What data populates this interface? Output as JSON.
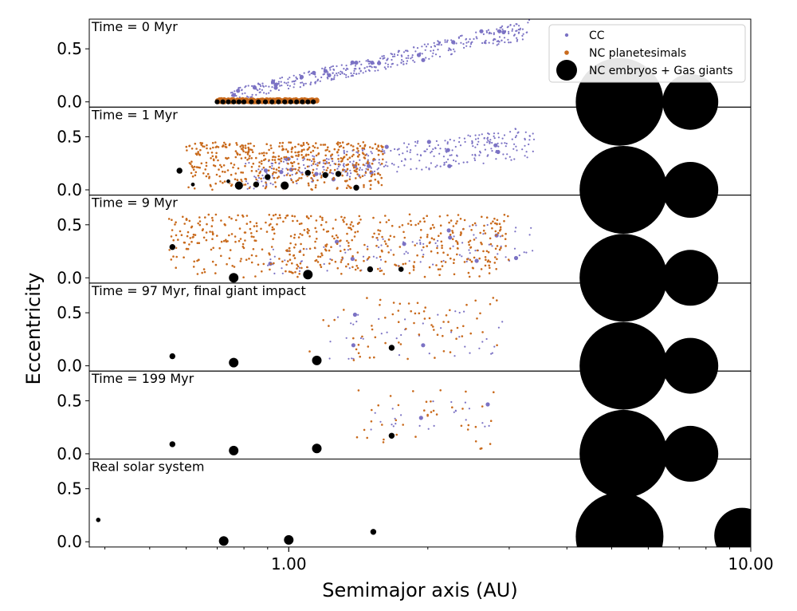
{
  "chart_data": {
    "type": "scatter",
    "xlabel": "Semimajor axis (AU)",
    "ylabel": "Eccentricity",
    "xscale": "log",
    "xlim": [
      0.37,
      10.0
    ],
    "ylim": [
      -0.05,
      0.78
    ],
    "x_tick_labels": [
      {
        "value": 1.0,
        "label": "1.00"
      },
      {
        "value": 10.0,
        "label": "10.00"
      }
    ],
    "y_tick_labels": [
      {
        "value": 0.0,
        "label": "0.0"
      },
      {
        "value": 0.5,
        "label": "0.5"
      }
    ],
    "legend": {
      "position": "top-right",
      "entries": [
        {
          "label": "CC",
          "color": "#7b72c4"
        },
        {
          "label": "NC planetesimals",
          "color": "#c96a1c"
        },
        {
          "label": "NC embryos + Gas giants",
          "color": "#000000"
        }
      ]
    },
    "colors": {
      "cc": "#7b72c4",
      "nc": "#c96a1c",
      "body": "#000000"
    },
    "panels": [
      {
        "label": "Time = 0 Myr",
        "cc_region": {
          "x": [
            0.75,
            3.35
          ],
          "e_low": [
            0.0,
            0.6
          ],
          "e_high": [
            0.12,
            0.78
          ],
          "count": 420
        },
        "nc_region": {
          "x": [
            0.7,
            1.15
          ],
          "e_max": 0.02,
          "count": 160
        },
        "bodies": [
          {
            "a": 0.7,
            "e": 0.0,
            "size": 0.35
          },
          {
            "a": 0.72,
            "e": 0.0,
            "size": 0.35
          },
          {
            "a": 0.74,
            "e": 0.0,
            "size": 0.35
          },
          {
            "a": 0.76,
            "e": 0.0,
            "size": 0.35
          },
          {
            "a": 0.78,
            "e": 0.0,
            "size": 0.35
          },
          {
            "a": 0.8,
            "e": 0.0,
            "size": 0.35
          },
          {
            "a": 0.83,
            "e": 0.0,
            "size": 0.35
          },
          {
            "a": 0.86,
            "e": 0.0,
            "size": 0.35
          },
          {
            "a": 0.89,
            "e": 0.0,
            "size": 0.35
          },
          {
            "a": 0.92,
            "e": 0.0,
            "size": 0.35
          },
          {
            "a": 0.95,
            "e": 0.0,
            "size": 0.35
          },
          {
            "a": 0.98,
            "e": 0.0,
            "size": 0.35
          },
          {
            "a": 1.01,
            "e": 0.0,
            "size": 0.35
          },
          {
            "a": 1.04,
            "e": 0.0,
            "size": 0.35
          },
          {
            "a": 1.07,
            "e": 0.0,
            "size": 0.35
          },
          {
            "a": 1.1,
            "e": 0.0,
            "size": 0.35
          },
          {
            "a": 1.13,
            "e": 0.0,
            "size": 0.35
          }
        ],
        "giants": [
          {
            "a": 5.2,
            "e": 0.0,
            "size": 55
          },
          {
            "a": 7.4,
            "e": 0.0,
            "size": 35
          }
        ]
      },
      {
        "label": "Time = 1 Myr",
        "cc_region": {
          "x": [
            0.8,
            3.4
          ],
          "e_low": [
            0.0,
            0.3
          ],
          "e_high": [
            0.25,
            0.6
          ],
          "count": 380
        },
        "nc_region": {
          "x": [
            0.6,
            1.6
          ],
          "e_max": 0.45,
          "count": 480
        },
        "bodies": [
          {
            "a": 0.58,
            "e": 0.18,
            "size": 0.45
          },
          {
            "a": 0.62,
            "e": 0.05,
            "size": 0.3
          },
          {
            "a": 0.74,
            "e": 0.08,
            "size": 0.3
          },
          {
            "a": 0.78,
            "e": 0.04,
            "size": 0.6
          },
          {
            "a": 0.85,
            "e": 0.05,
            "size": 0.45
          },
          {
            "a": 0.9,
            "e": 0.12,
            "size": 0.45
          },
          {
            "a": 0.98,
            "e": 0.04,
            "size": 0.6
          },
          {
            "a": 1.1,
            "e": 0.16,
            "size": 0.45
          },
          {
            "a": 1.2,
            "e": 0.14,
            "size": 0.45
          },
          {
            "a": 1.28,
            "e": 0.15,
            "size": 0.45
          },
          {
            "a": 1.4,
            "e": 0.02,
            "size": 0.45
          }
        ],
        "giants": [
          {
            "a": 5.3,
            "e": 0.0,
            "size": 55
          },
          {
            "a": 7.4,
            "e": 0.0,
            "size": 35
          }
        ]
      },
      {
        "label": "Time = 9 Myr",
        "cc_region": {
          "x": [
            0.9,
            3.4
          ],
          "e_low": [
            0.0,
            0.15
          ],
          "e_high": [
            0.3,
            0.55
          ],
          "count": 110
        },
        "nc_region": {
          "x": [
            0.55,
            3.0
          ],
          "e_max": 0.6,
          "count": 520
        },
        "bodies": [
          {
            "a": 0.56,
            "e": 0.29,
            "size": 0.45
          },
          {
            "a": 0.76,
            "e": 0.0,
            "size": 0.7
          },
          {
            "a": 1.1,
            "e": 0.03,
            "size": 0.7
          },
          {
            "a": 1.5,
            "e": 0.08,
            "size": 0.45
          },
          {
            "a": 1.75,
            "e": 0.08,
            "size": 0.4
          }
        ],
        "giants": [
          {
            "a": 5.3,
            "e": 0.0,
            "size": 55
          },
          {
            "a": 7.4,
            "e": 0.0,
            "size": 35
          }
        ]
      },
      {
        "label": "Time = 97 Myr, final giant impact",
        "cc_region": {
          "x": [
            1.2,
            3.0
          ],
          "e_low": [
            0.05,
            0.1
          ],
          "e_high": [
            0.5,
            0.55
          ],
          "count": 45
        },
        "nc_region": {
          "x": [
            1.1,
            2.9
          ],
          "e_max": 0.65,
          "count": 70
        },
        "bodies": [
          {
            "a": 0.56,
            "e": 0.09,
            "size": 0.45
          },
          {
            "a": 0.76,
            "e": 0.03,
            "size": 0.7
          },
          {
            "a": 1.15,
            "e": 0.05,
            "size": 0.7
          },
          {
            "a": 1.67,
            "e": 0.17,
            "size": 0.45
          }
        ],
        "giants": [
          {
            "a": 5.3,
            "e": 0.0,
            "size": 55
          },
          {
            "a": 7.4,
            "e": 0.0,
            "size": 35
          }
        ]
      },
      {
        "label": "Time = 199 Myr",
        "cc_region": {
          "x": [
            1.5,
            2.8
          ],
          "e_low": [
            0.2,
            0.2
          ],
          "e_high": [
            0.5,
            0.5
          ],
          "count": 25
        },
        "nc_region": {
          "x": [
            1.4,
            2.8
          ],
          "e_max": 0.6,
          "count": 40
        },
        "bodies": [
          {
            "a": 0.56,
            "e": 0.09,
            "size": 0.45
          },
          {
            "a": 0.76,
            "e": 0.03,
            "size": 0.7
          },
          {
            "a": 1.15,
            "e": 0.05,
            "size": 0.7
          },
          {
            "a": 1.67,
            "e": 0.17,
            "size": 0.45
          }
        ],
        "giants": [
          {
            "a": 5.3,
            "e": 0.0,
            "size": 55
          },
          {
            "a": 7.4,
            "e": 0.0,
            "size": 35
          }
        ]
      },
      {
        "label": "Real solar system",
        "cc_region": null,
        "nc_region": null,
        "bodies": [
          {
            "a": 0.387,
            "e": 0.206,
            "size": 0.35
          },
          {
            "a": 0.723,
            "e": 0.007,
            "size": 0.7
          },
          {
            "a": 1.0,
            "e": 0.017,
            "size": 0.7
          },
          {
            "a": 1.524,
            "e": 0.093,
            "size": 0.45
          }
        ],
        "giants": [
          {
            "a": 5.2,
            "e": 0.049,
            "size": 55
          },
          {
            "a": 9.58,
            "e": 0.057,
            "size": 35
          }
        ]
      }
    ]
  }
}
